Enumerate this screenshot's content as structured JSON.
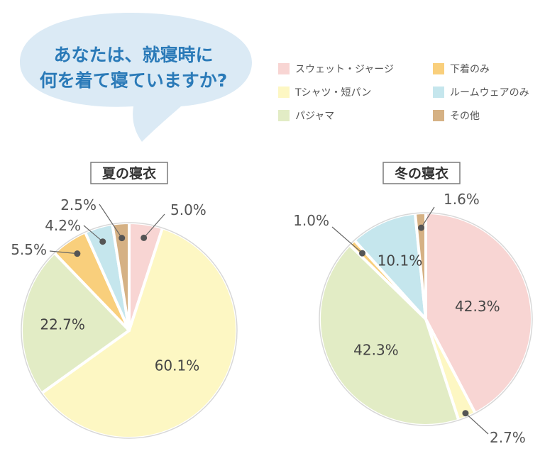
{
  "question": {
    "line1": "あなたは、就寝時に",
    "line2": "何を着て寝ていますか?"
  },
  "legend": [
    {
      "label": "スウェット・ジャージ",
      "color": "#f8d5d3"
    },
    {
      "label": "下着のみ",
      "color": "#f9cf7c"
    },
    {
      "label": "Tシャツ・短パン",
      "color": "#fdf7c3"
    },
    {
      "label": "ルームウェアのみ",
      "color": "#c5e6ed"
    },
    {
      "label": "パジャマ",
      "color": "#e2ecc5"
    },
    {
      "label": "その他",
      "color": "#d5b184"
    }
  ],
  "chart_data": [
    {
      "type": "pie",
      "title": "夏の寝衣",
      "categories": [
        "スウェット・ジャージ",
        "Tシャツ・短パン",
        "パジャマ",
        "下着のみ",
        "ルームウェアのみ",
        "その他"
      ],
      "values": [
        5.0,
        60.1,
        22.7,
        5.5,
        4.2,
        2.5
      ],
      "labels": [
        "5.0%",
        "60.1%",
        "22.7%",
        "5.5%",
        "4.2%",
        "2.5%"
      ]
    },
    {
      "type": "pie",
      "title": "冬の寝衣",
      "categories": [
        "スウェット・ジャージ",
        "Tシャツ・短パン",
        "パジャマ",
        "下着のみ",
        "ルームウェアのみ",
        "その他"
      ],
      "values": [
        42.3,
        2.7,
        42.3,
        1.0,
        10.1,
        1.6
      ],
      "labels": [
        "42.3%",
        "2.7%",
        "42.3%",
        "1.0%",
        "10.1%",
        "1.6%"
      ]
    }
  ]
}
